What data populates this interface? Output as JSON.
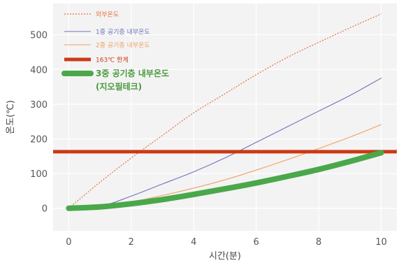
{
  "chart_data": {
    "type": "line",
    "title": "",
    "xlabel": "시간(분)",
    "ylabel": "온도(℃)",
    "xlim": [
      -0.5,
      10.5
    ],
    "ylim": [
      -65,
      590
    ],
    "xticks": [
      "0",
      "2",
      "4",
      "6",
      "8",
      "10"
    ],
    "yticks": [
      "0",
      "100",
      "200",
      "300",
      "400",
      "500"
    ],
    "grid": true,
    "legend_position": "top-left",
    "series": [
      {
        "name": "외부온도",
        "color": "#e8703a",
        "style": "dotted",
        "x": [
          0,
          1,
          2,
          3,
          4,
          5,
          6,
          7,
          8,
          9,
          10
        ],
        "y": [
          0,
          75,
          145,
          210,
          275,
          330,
          385,
          435,
          478,
          520,
          560
        ]
      },
      {
        "name": "1중 공기층 내부온도",
        "color": "#6f74b8",
        "style": "solid",
        "x": [
          0,
          1,
          2,
          3,
          4,
          5,
          6,
          7,
          8,
          9,
          10
        ],
        "y": [
          0,
          5,
          35,
          70,
          105,
          145,
          190,
          235,
          280,
          325,
          375
        ]
      },
      {
        "name": "2중 공기층 내부온도",
        "color": "#f0a060",
        "style": "solid",
        "x": [
          0,
          1,
          2,
          3,
          4,
          5,
          6,
          7,
          8,
          9,
          10
        ],
        "y": [
          0,
          5,
          18,
          37,
          58,
          82,
          110,
          140,
          172,
          205,
          241
        ]
      },
      {
        "name": "163℃ 한계",
        "color": "#cc3a14",
        "style": "solid",
        "x": [
          -0.5,
          10.5
        ],
        "y": [
          163,
          163
        ]
      },
      {
        "name": "3중 공기층 내부온도",
        "sublabel": "(지오필테크)",
        "color": "#4aa84a",
        "style": "solid",
        "x": [
          0,
          1,
          2,
          3,
          4,
          5,
          6,
          7,
          8,
          9,
          10
        ],
        "y": [
          0,
          4,
          13,
          25,
          40,
          56,
          73,
          92,
          112,
          135,
          160
        ]
      }
    ]
  }
}
